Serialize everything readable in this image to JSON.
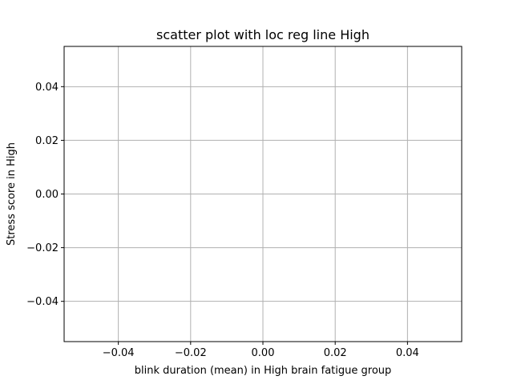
{
  "chart_data": {
    "type": "scatter",
    "title": "scatter plot with loc reg line High",
    "xlabel": "blink duration (mean) in High brain fatigue group",
    "ylabel": "Stress score in High",
    "xlim": [
      -0.055,
      0.055
    ],
    "ylim": [
      -0.055,
      0.055
    ],
    "grid": true,
    "x_ticks": [
      -0.04,
      -0.02,
      0.0,
      0.02,
      0.04
    ],
    "x_tick_labels": [
      "−0.04",
      "−0.02",
      "0.00",
      "0.02",
      "0.04"
    ],
    "y_ticks": [
      -0.04,
      -0.02,
      0.0,
      0.02,
      0.04
    ],
    "y_tick_labels": [
      "−0.04",
      "−0.02",
      "0.00",
      "0.02",
      "0.04"
    ],
    "series": [
      {
        "name": "High",
        "x": [],
        "y": []
      }
    ],
    "colors": {
      "grid": "#b0b0b0",
      "axes": "#000000",
      "background": "#ffffff"
    }
  }
}
